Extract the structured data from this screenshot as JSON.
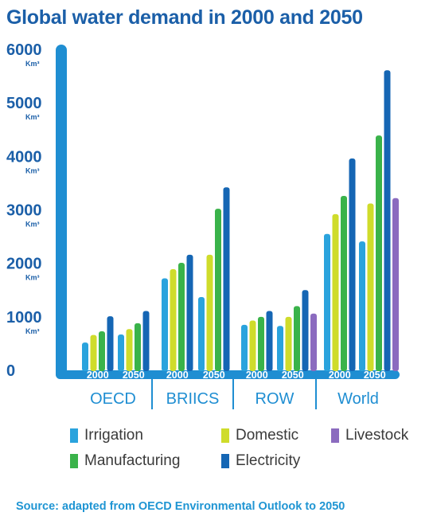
{
  "title": "Global water demand in 2000 and 2050",
  "source": "Source: adapted from OECD Environmental Outlook to 2050",
  "chart_data": {
    "type": "bar",
    "title": "Global water demand in 2000 and 2050",
    "y_ticks": [
      {
        "value": 0,
        "label": "0",
        "unit": ""
      },
      {
        "value": 1000,
        "label": "1000",
        "unit": "Km³"
      },
      {
        "value": 2000,
        "label": "2000",
        "unit": "Km³"
      },
      {
        "value": 3000,
        "label": "3000",
        "unit": "Km³"
      },
      {
        "value": 4000,
        "label": "4000",
        "unit": "Km³"
      },
      {
        "value": 5000,
        "label": "5000",
        "unit": "Km³"
      },
      {
        "value": 6000,
        "label": "6000",
        "unit": "Km³"
      }
    ],
    "ylim": [
      0,
      6000
    ],
    "grid": false,
    "legend_position": "bottom",
    "groups": [
      {
        "name": "OECD",
        "years": [
          {
            "year": "2000",
            "values": {
              "Irrigation": 520,
              "Domestic": 660,
              "Manufacturing": 730,
              "Electricity": 1010
            }
          },
          {
            "year": "2050",
            "values": {
              "Irrigation": 670,
              "Domestic": 770,
              "Manufacturing": 880,
              "Electricity": 1110
            }
          }
        ]
      },
      {
        "name": "BRIICS",
        "years": [
          {
            "year": "2000",
            "values": {
              "Irrigation": 1720,
              "Domestic": 1890,
              "Manufacturing": 2010,
              "Electricity": 2160
            }
          },
          {
            "year": "2050",
            "values": {
              "Irrigation": 1370,
              "Domestic": 2160,
              "Manufacturing": 3020,
              "Electricity": 3420
            }
          }
        ]
      },
      {
        "name": "ROW",
        "years": [
          {
            "year": "2000",
            "values": {
              "Irrigation": 850,
              "Domestic": 930,
              "Manufacturing": 1000,
              "Electricity": 1110
            }
          },
          {
            "year": "2050",
            "values": {
              "Irrigation": 830,
              "Domestic": 1000,
              "Manufacturing": 1200,
              "Electricity": 1500,
              "Livestock": 1060
            }
          }
        ]
      },
      {
        "name": "World",
        "years": [
          {
            "year": "2000",
            "values": {
              "Irrigation": 2550,
              "Domestic": 2920,
              "Manufacturing": 3260,
              "Electricity": 3960
            }
          },
          {
            "year": "2050",
            "values": {
              "Irrigation": 2410,
              "Domestic": 3120,
              "Manufacturing": 4390,
              "Electricity": 5610,
              "Livestock": 3220
            }
          }
        ]
      }
    ],
    "series": [
      {
        "name": "Irrigation",
        "color": "#2aa3dd"
      },
      {
        "name": "Domestic",
        "color": "#cfdc2b"
      },
      {
        "name": "Manufacturing",
        "color": "#3ab34a"
      },
      {
        "name": "Electricity",
        "color": "#1566b4"
      },
      {
        "name": "Livestock",
        "color": "#8b6bbf"
      }
    ],
    "axis_color": "#1f8ed2",
    "tick_color": "#1b5fa8"
  }
}
